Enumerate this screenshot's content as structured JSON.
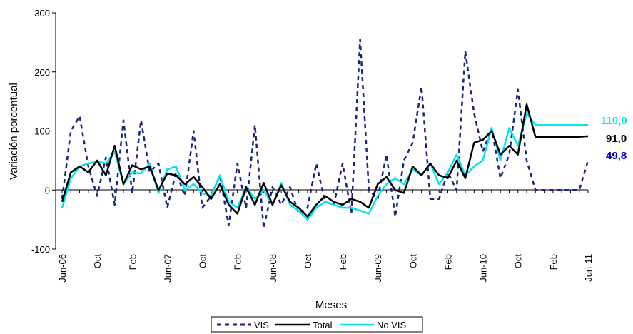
{
  "chart_data": {
    "type": "line",
    "xlabel": "Meses",
    "ylabel": "Variación porcentual",
    "ylim": [
      -100,
      300
    ],
    "yticks": [
      "300",
      "200",
      "100",
      "0",
      "-100"
    ],
    "x_tick_labels": [
      "Jun-06",
      "Oct",
      "Feb",
      "Jun-07",
      "Oct",
      "Feb",
      "Jun-08",
      "Oct",
      "Feb",
      "Jun-09",
      "Oct",
      "Feb",
      "Jun-10",
      "Oct",
      "Feb",
      "Jun-11"
    ],
    "months": 61,
    "grid": false,
    "legend_position": "bottom",
    "end_labels": [
      {
        "value": "110,0",
        "color": "#00e5ee"
      },
      {
        "value": "91,0",
        "color": "#000000"
      },
      {
        "value": "49,8",
        "color": "#0000cc"
      }
    ],
    "series": [
      {
        "name": "VIS",
        "color": "#1a237e",
        "style": "dashed",
        "values": [
          -15,
          100,
          125,
          40,
          -10,
          55,
          -25,
          118,
          -5,
          118,
          30,
          45,
          -30,
          30,
          -10,
          100,
          -30,
          -10,
          25,
          -60,
          45,
          -30,
          110,
          -65,
          5,
          -25,
          5,
          -40,
          -30,
          45,
          -20,
          -25,
          45,
          -40,
          255,
          0,
          -15,
          60,
          -45,
          50,
          80,
          175,
          -15,
          -15,
          30,
          0,
          235,
          130,
          65,
          105,
          20,
          60,
          170,
          50,
          0,
          0,
          0,
          0,
          0,
          0,
          50
        ]
      },
      {
        "name": "Total",
        "color": "#000000",
        "style": "solid",
        "values": [
          -20,
          30,
          40,
          30,
          50,
          25,
          75,
          10,
          42,
          35,
          40,
          0,
          28,
          25,
          10,
          22,
          5,
          -15,
          10,
          -25,
          -40,
          5,
          -25,
          12,
          -25,
          8,
          -20,
          -30,
          -45,
          -25,
          -10,
          -20,
          -25,
          -15,
          -20,
          -30,
          10,
          22,
          0,
          -5,
          40,
          25,
          45,
          25,
          20,
          50,
          20,
          80,
          85,
          100,
          60,
          75,
          60,
          145,
          90,
          90,
          90,
          90,
          90,
          90,
          91
        ]
      },
      {
        "name": "No VIS",
        "color": "#00e5ee",
        "style": "solid",
        "values": [
          -30,
          20,
          40,
          45,
          48,
          45,
          65,
          10,
          30,
          28,
          45,
          -5,
          35,
          40,
          0,
          10,
          -5,
          -10,
          25,
          -20,
          -30,
          5,
          -15,
          0,
          -25,
          12,
          -25,
          -35,
          -50,
          -30,
          -20,
          -25,
          -30,
          -30,
          -35,
          -40,
          -10,
          10,
          20,
          10,
          35,
          25,
          45,
          10,
          30,
          60,
          25,
          40,
          50,
          105,
          50,
          105,
          75,
          130,
          110,
          110,
          110,
          110,
          110,
          110,
          110
        ]
      }
    ]
  }
}
